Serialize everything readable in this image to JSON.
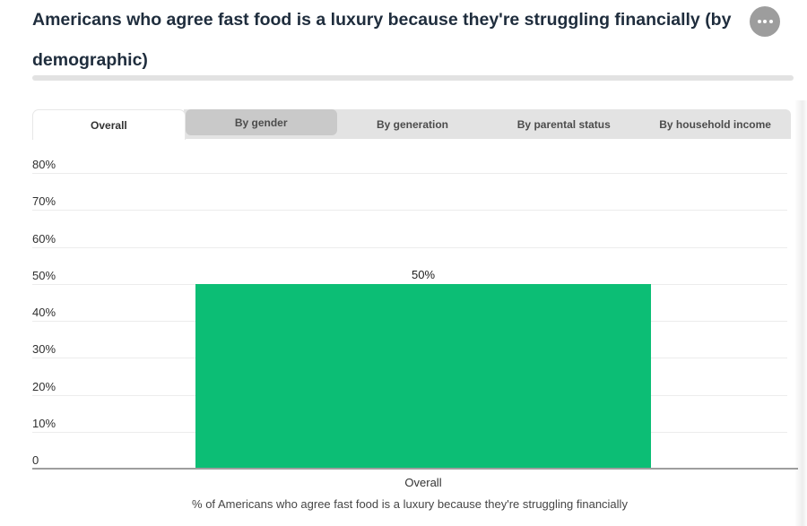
{
  "header": {
    "title": "Americans who agree fast food is a luxury because they're struggling financially (by demographic)",
    "menu_icon": "ellipsis"
  },
  "tabs": [
    {
      "label": "Overall",
      "state": "active"
    },
    {
      "label": "By gender",
      "state": "hover"
    },
    {
      "label": "By generation",
      "state": "default"
    },
    {
      "label": "By parental status",
      "state": "default"
    },
    {
      "label": "By household income",
      "state": "default"
    }
  ],
  "chart_data": {
    "type": "bar",
    "title": "Americans who agree fast food is a luxury because they're struggling financially (by demographic)",
    "categories": [
      "Overall"
    ],
    "values": [
      50
    ],
    "value_labels": [
      "50%"
    ],
    "xlabel": "",
    "ylabel": "",
    "ylim": [
      0,
      80
    ],
    "y_ticks": [
      {
        "value": 80,
        "label": "80%"
      },
      {
        "value": 70,
        "label": "70%"
      },
      {
        "value": 60,
        "label": "60%"
      },
      {
        "value": 50,
        "label": "50%"
      },
      {
        "value": 40,
        "label": "40%"
      },
      {
        "value": 30,
        "label": "30%"
      },
      {
        "value": 20,
        "label": "20%"
      },
      {
        "value": 10,
        "label": "10%"
      },
      {
        "value": 0,
        "label": "0"
      }
    ],
    "grid": true,
    "legend": false,
    "bar_color": "#0cbe75",
    "caption": "% of Americans who agree fast food is a luxury because they're struggling financially"
  },
  "colors": {
    "accent_green": "#0cbe75",
    "tab_strip": "#e3e3e3",
    "tab_hover": "#c9c9c9",
    "divider": "#e2e2e2",
    "gridline": "#ececec",
    "axis_line": "#9e9e9e",
    "title_text": "#1f2d3d",
    "menu_button": "#9d9d9d"
  }
}
